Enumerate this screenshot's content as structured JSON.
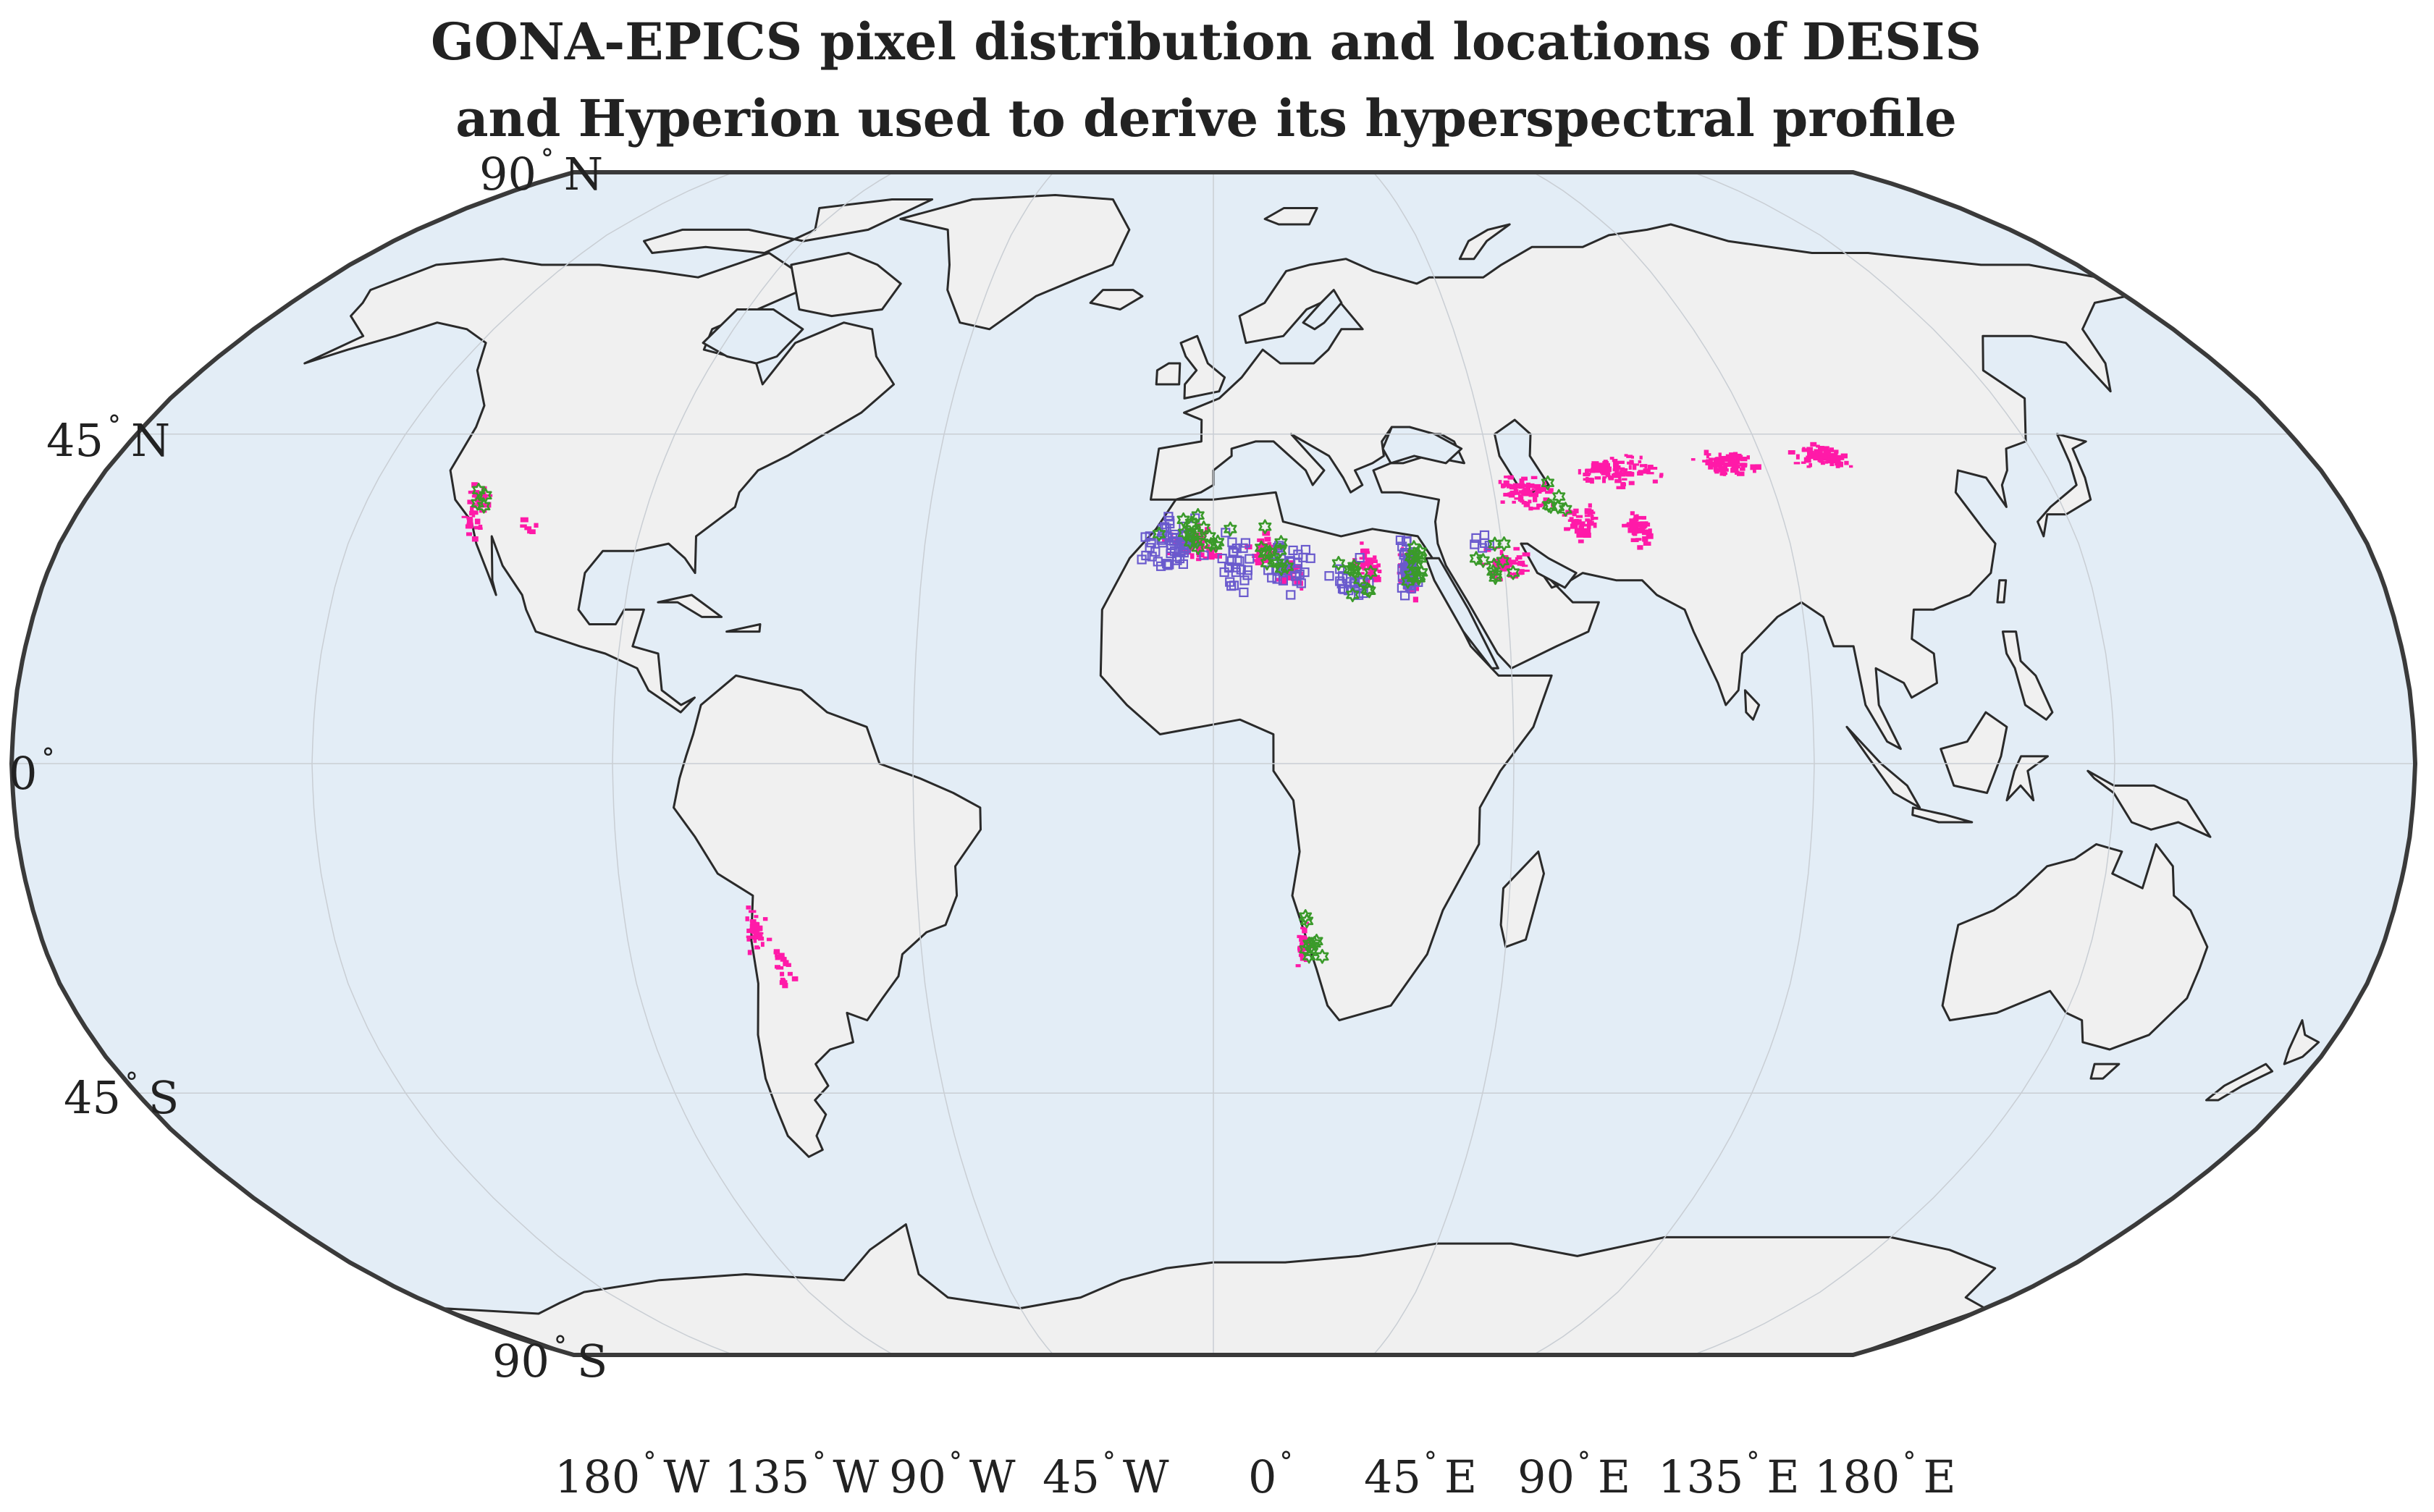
{
  "title": {
    "line1": "GONA-EPICS pixel distribution and locations of DESIS",
    "line2": "and Hyperion used to derive its hyperspectral profile"
  },
  "latitude_labels": [
    {
      "value": "90",
      "hemisphere": "N"
    },
    {
      "value": "45",
      "hemisphere": "N"
    },
    {
      "value": "0",
      "hemisphere": ""
    },
    {
      "value": "45",
      "hemisphere": "S"
    },
    {
      "value": "90",
      "hemisphere": "S"
    }
  ],
  "longitude_labels": [
    {
      "value": "180",
      "hemisphere": "W"
    },
    {
      "value": "135",
      "hemisphere": "W"
    },
    {
      "value": "90",
      "hemisphere": "W"
    },
    {
      "value": "45",
      "hemisphere": "W"
    },
    {
      "value": "0",
      "hemisphere": ""
    },
    {
      "value": "45",
      "hemisphere": "E"
    },
    {
      "value": "90",
      "hemisphere": "E"
    },
    {
      "value": "135",
      "hemisphere": "E"
    },
    {
      "value": "180",
      "hemisphere": "E"
    }
  ],
  "degree_symbol": "°",
  "colors": {
    "ocean": "#e3edf6",
    "land": "#f0f0f0",
    "coastline": "#2a2a2a",
    "gona_epics_pixels": "#ff1aa8",
    "desis_squares": "#6a5acd",
    "hyperion_stars": "#3a9a2a"
  },
  "chart_data": {
    "type": "map",
    "projection": "Robinson",
    "grid": true,
    "layers": [
      {
        "kind": "gona_epics_pixels",
        "symbol": "dot",
        "clusters": [
          {
            "lon": -117,
            "lat": 35,
            "spread_lon": 3,
            "spread_lat": 5,
            "count": 40
          },
          {
            "lon": -108,
            "lat": 32,
            "spread_lon": 2,
            "spread_lat": 2,
            "count": 6
          },
          {
            "lon": -70,
            "lat": -23,
            "spread_lon": 2,
            "spread_lat": 4,
            "count": 40
          },
          {
            "lon": -67,
            "lat": -28,
            "spread_lon": 2,
            "spread_lat": 5,
            "count": 20
          },
          {
            "lon": -3,
            "lat": 30,
            "spread_lon": 5,
            "spread_lat": 3,
            "count": 70
          },
          {
            "lon": 8,
            "lat": 29,
            "spread_lon": 3,
            "spread_lat": 3,
            "count": 35
          },
          {
            "lon": 12,
            "lat": 26,
            "spread_lon": 3,
            "spread_lat": 3,
            "count": 30
          },
          {
            "lon": 24,
            "lat": 27,
            "spread_lon": 3,
            "spread_lat": 4,
            "count": 40
          },
          {
            "lon": 30,
            "lat": 26,
            "spread_lon": 2,
            "spread_lat": 5,
            "count": 45
          },
          {
            "lon": 45,
            "lat": 27,
            "spread_lon": 5,
            "spread_lat": 3,
            "count": 45
          },
          {
            "lon": 50,
            "lat": 37,
            "spread_lon": 6,
            "spread_lat": 3,
            "count": 70
          },
          {
            "lon": 58,
            "lat": 33,
            "spread_lon": 4,
            "spread_lat": 3,
            "count": 40
          },
          {
            "lon": 66,
            "lat": 40,
            "spread_lon": 8,
            "spread_lat": 3,
            "count": 90
          },
          {
            "lon": 67,
            "lat": 32,
            "spread_lon": 3,
            "spread_lat": 3,
            "count": 45
          },
          {
            "lon": 84,
            "lat": 41,
            "spread_lon": 6,
            "spread_lat": 2,
            "count": 90
          },
          {
            "lon": 100,
            "lat": 42,
            "spread_lon": 6,
            "spread_lat": 2,
            "count": 80
          },
          {
            "lon": 14,
            "lat": -25,
            "spread_lon": 1.5,
            "spread_lat": 4,
            "count": 30
          }
        ]
      },
      {
        "kind": "desis_scenes",
        "symbol": "open-square",
        "clusters": [
          {
            "lon": -6,
            "lat": 30,
            "spread_lon": 6,
            "spread_lat": 5,
            "count": 55
          },
          {
            "lon": 4,
            "lat": 27,
            "spread_lon": 4,
            "spread_lat": 5,
            "count": 25
          },
          {
            "lon": 12,
            "lat": 27,
            "spread_lon": 5,
            "spread_lat": 5,
            "count": 30
          },
          {
            "lon": 21,
            "lat": 25,
            "spread_lon": 4,
            "spread_lat": 4,
            "count": 20
          },
          {
            "lon": 30,
            "lat": 27,
            "spread_lon": 2,
            "spread_lat": 5,
            "count": 45
          },
          {
            "lon": 42,
            "lat": 30,
            "spread_lon": 3,
            "spread_lat": 3,
            "count": 6
          }
        ]
      },
      {
        "kind": "hyperion_scenes",
        "symbol": "open-star",
        "clusters": [
          {
            "lon": -117,
            "lat": 36,
            "spread_lon": 2,
            "spread_lat": 3,
            "count": 4
          },
          {
            "lon": -3,
            "lat": 31,
            "spread_lon": 6,
            "spread_lat": 4,
            "count": 18
          },
          {
            "lon": 9,
            "lat": 28,
            "spread_lon": 5,
            "spread_lat": 5,
            "count": 12
          },
          {
            "lon": 22,
            "lat": 25,
            "spread_lon": 5,
            "spread_lat": 5,
            "count": 10
          },
          {
            "lon": 31,
            "lat": 27,
            "spread_lon": 2,
            "spread_lat": 5,
            "count": 15
          },
          {
            "lon": 45,
            "lat": 27,
            "spread_lon": 6,
            "spread_lat": 4,
            "count": 10
          },
          {
            "lon": 55,
            "lat": 36,
            "spread_lon": 4,
            "spread_lat": 3,
            "count": 6
          },
          {
            "lon": 15,
            "lat": -24,
            "spread_lon": 2,
            "spread_lat": 5,
            "count": 10
          }
        ]
      }
    ]
  }
}
